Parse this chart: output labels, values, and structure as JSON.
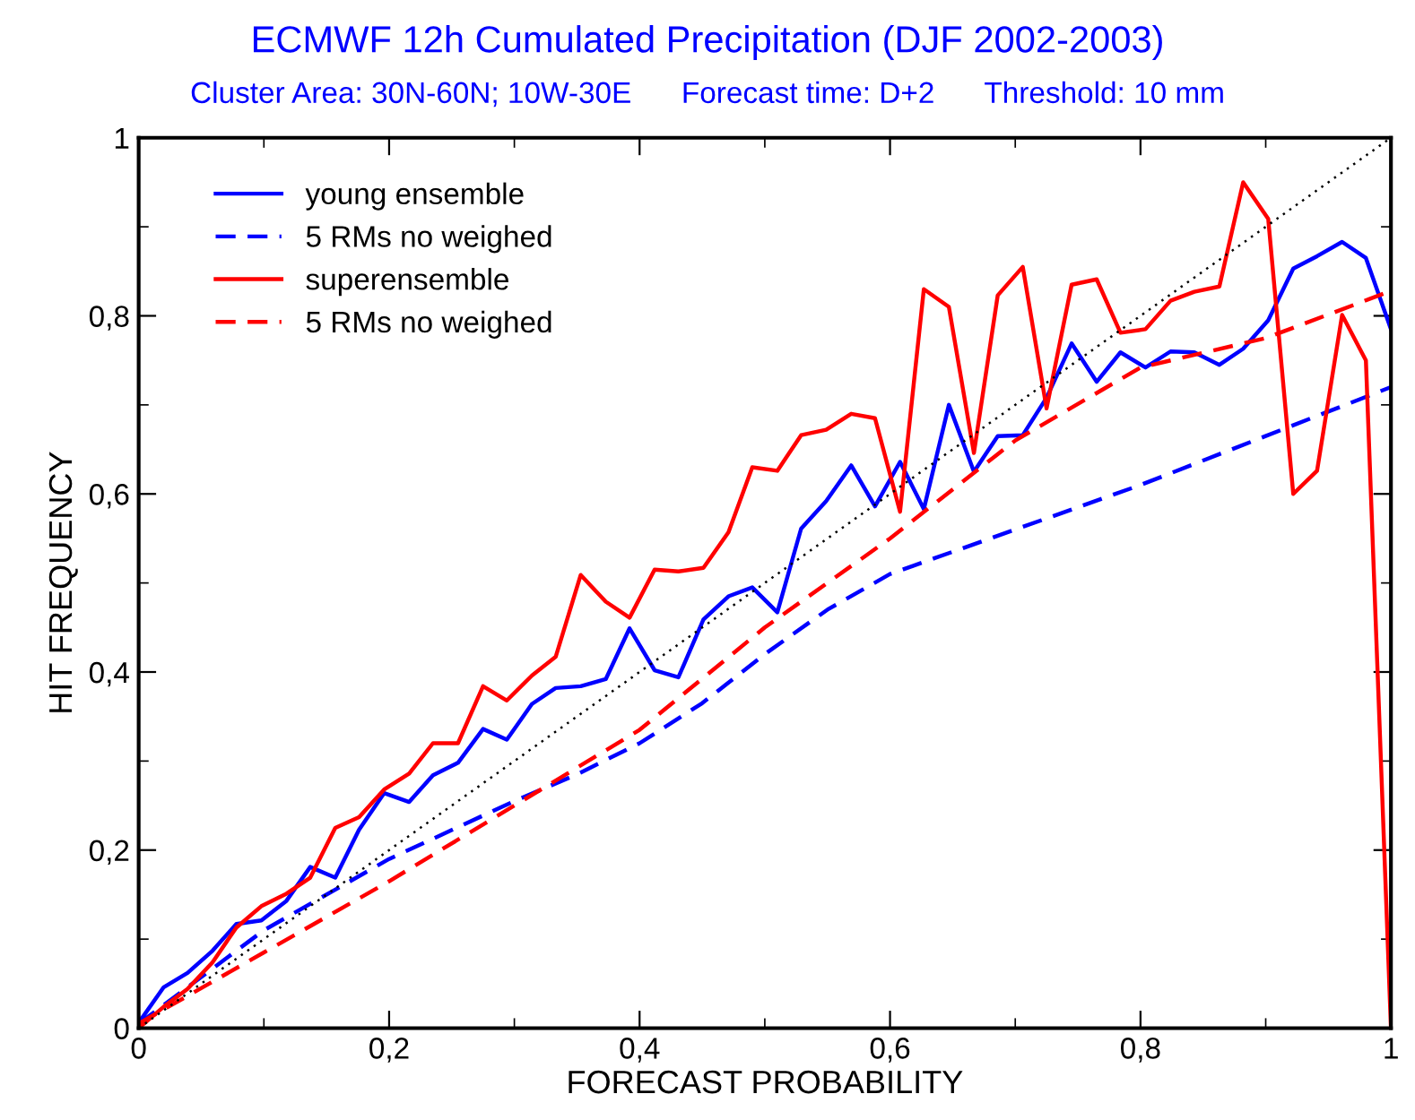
{
  "chart_data": {
    "type": "line",
    "title": "ECMWF 12h Cumulated Precipitation (DJF 2002-2003)",
    "subtitle": "Cluster Area: 30N-60N; 10W-30E      Forecast time: D+2      Threshold: 10 mm",
    "xlabel": "FORECAST PROBABILITY",
    "ylabel": "HIT FREQUENCY",
    "xlim": [
      0,
      1
    ],
    "ylim": [
      0,
      1
    ],
    "xticks": [
      0,
      {
        "value": 0.2,
        "label": "0,2"
      },
      {
        "value": 0.4,
        "label": "0,4"
      },
      {
        "value": 0.6,
        "label": "0,6"
      },
      {
        "value": 0.8,
        "label": "0,8"
      },
      1
    ],
    "yticks": [
      0,
      {
        "value": 0.2,
        "label": "0,2"
      },
      {
        "value": 0.4,
        "label": "0,4"
      },
      {
        "value": 0.6,
        "label": "0,6"
      },
      {
        "value": 0.8,
        "label": "0,8"
      },
      1
    ],
    "grid": false,
    "legend": "top left",
    "marker": "none",
    "series": [
      {
        "name": "young ensemble",
        "color": "#0000ff",
        "line_style": "solid",
        "x": [
          0,
          0.02,
          0.039,
          0.059,
          0.078,
          0.098,
          0.118,
          0.137,
          0.157,
          0.176,
          0.196,
          0.216,
          0.235,
          0.255,
          0.275,
          0.294,
          0.314,
          0.333,
          0.353,
          0.373,
          0.392,
          0.412,
          0.431,
          0.451,
          0.471,
          0.49,
          0.51,
          0.529,
          0.549,
          0.569,
          0.588,
          0.608,
          0.627,
          0.647,
          0.667,
          0.686,
          0.706,
          0.725,
          0.745,
          0.765,
          0.784,
          0.804,
          0.824,
          0.843,
          0.863,
          0.882,
          0.902,
          0.922,
          0.941,
          0.961,
          0.98,
          1
        ],
        "values": [
          0.006,
          0.046,
          0.062,
          0.087,
          0.117,
          0.121,
          0.143,
          0.181,
          0.169,
          0.223,
          0.264,
          0.254,
          0.284,
          0.298,
          0.336,
          0.324,
          0.364,
          0.382,
          0.384,
          0.392,
          0.449,
          0.402,
          0.394,
          0.459,
          0.485,
          0.495,
          0.467,
          0.561,
          0.592,
          0.632,
          0.586,
          0.636,
          0.583,
          0.7,
          0.625,
          0.665,
          0.666,
          0.708,
          0.769,
          0.726,
          0.759,
          0.742,
          0.76,
          0.759,
          0.745,
          0.763,
          0.795,
          0.853,
          0.867,
          0.883,
          0.865,
          0.785
        ]
      },
      {
        "name": "5 RMs no weighed",
        "color": "#0000ff",
        "line_style": "dashed",
        "x": [
          0,
          0.1,
          0.2,
          0.3,
          0.35,
          0.4,
          0.45,
          0.5,
          0.55,
          0.6,
          0.7,
          0.8,
          0.9,
          1
        ],
        "values": [
          0.005,
          0.11,
          0.19,
          0.255,
          0.285,
          0.32,
          0.365,
          0.42,
          0.47,
          0.51,
          0.56,
          0.61,
          0.665,
          0.72
        ]
      },
      {
        "name": "superensemble",
        "color": "#ff0000",
        "line_style": "solid",
        "x": [
          0,
          0.02,
          0.039,
          0.059,
          0.078,
          0.098,
          0.118,
          0.137,
          0.157,
          0.176,
          0.196,
          0.216,
          0.235,
          0.255,
          0.275,
          0.294,
          0.314,
          0.333,
          0.353,
          0.373,
          0.392,
          0.412,
          0.431,
          0.451,
          0.471,
          0.49,
          0.51,
          0.529,
          0.549,
          0.569,
          0.588,
          0.608,
          0.627,
          0.647,
          0.667,
          0.686,
          0.706,
          0.725,
          0.745,
          0.765,
          0.784,
          0.804,
          0.824,
          0.843,
          0.863,
          0.882,
          0.902,
          0.922,
          0.941,
          0.961,
          0.98,
          1
        ],
        "values": [
          0,
          0.024,
          0.044,
          0.074,
          0.113,
          0.137,
          0.151,
          0.169,
          0.225,
          0.237,
          0.268,
          0.286,
          0.32,
          0.32,
          0.384,
          0.368,
          0.396,
          0.417,
          0.509,
          0.479,
          0.461,
          0.515,
          0.513,
          0.517,
          0.557,
          0.63,
          0.626,
          0.666,
          0.672,
          0.69,
          0.685,
          0.58,
          0.83,
          0.81,
          0.646,
          0.823,
          0.855,
          0.696,
          0.835,
          0.841,
          0.781,
          0.785,
          0.817,
          0.827,
          0.833,
          0.95,
          0.909,
          0.6,
          0.626,
          0.801,
          0.75,
          0
        ]
      },
      {
        "name": "5 RMs no weighed",
        "color": "#ff0000",
        "line_style": "dashed",
        "x": [
          0,
          0.1,
          0.2,
          0.3,
          0.4,
          0.5,
          0.6,
          0.7,
          0.8,
          0.9,
          1
        ],
        "values": [
          0.005,
          0.085,
          0.165,
          0.25,
          0.335,
          0.45,
          0.55,
          0.66,
          0.742,
          0.775,
          0.828
        ]
      },
      {
        "color": "#000000",
        "line_style": "dotted",
        "x": [
          0,
          1
        ],
        "values": [
          0,
          1
        ]
      }
    ]
  }
}
